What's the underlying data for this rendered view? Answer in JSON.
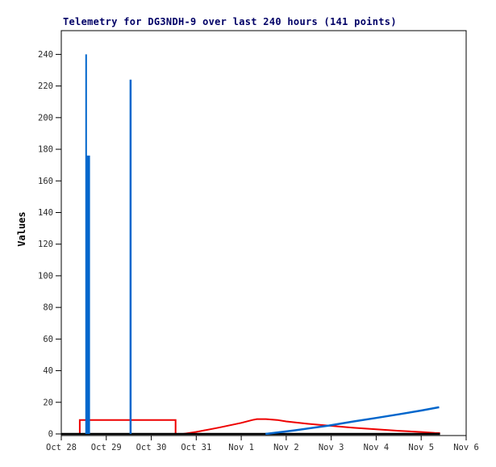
{
  "window": {
    "background": "#FFFFFF"
  },
  "chart_data": {
    "type": "line",
    "title": "Telemetry for DG3NDH-9 over last 240 hours (141 points)",
    "xlabel": "",
    "ylabel": "Values",
    "x_axis": {
      "unit": "days since Oct 28 00:00",
      "range_days": [
        0,
        9
      ],
      "tick_labels": [
        "Oct 28",
        "Oct 29",
        "Oct 30",
        "Oct 31",
        "Nov 1",
        "Nov 2",
        "Nov 3",
        "Nov 4",
        "Nov 5",
        "Nov 6"
      ]
    },
    "y_axis": {
      "range": [
        0,
        255
      ],
      "ticks": [
        0,
        20,
        40,
        60,
        80,
        100,
        120,
        140,
        160,
        180,
        200,
        220,
        240
      ]
    },
    "grid": false,
    "legend": "none",
    "colors": {
      "title_text": "#000066",
      "axis_text": "#2b2b2b",
      "frame": "#000000",
      "red_series": "#EE0000",
      "blue_series": "#0066CC",
      "baseline_series": "#000000"
    },
    "series": [
      {
        "name": "red-step-and-hump",
        "type": "polyline",
        "color_key": "red_series",
        "width": 2,
        "points": [
          [
            0.41,
            0
          ],
          [
            0.41,
            8.8
          ],
          [
            2.54,
            8.8
          ],
          [
            2.54,
            0
          ],
          [
            2.71,
            0
          ],
          [
            3.0,
            1.3
          ],
          [
            3.5,
            4.0
          ],
          [
            4.0,
            7.0
          ],
          [
            4.25,
            8.8
          ],
          [
            4.35,
            9.4
          ],
          [
            4.55,
            9.4
          ],
          [
            4.8,
            8.8
          ],
          [
            5.0,
            7.9
          ],
          [
            5.45,
            6.5
          ],
          [
            5.95,
            5.2
          ],
          [
            6.5,
            3.9
          ],
          [
            7.0,
            2.9
          ],
          [
            7.5,
            2.0
          ],
          [
            8.0,
            1.2
          ],
          [
            8.3,
            0.6
          ],
          [
            8.42,
            0.5
          ]
        ]
      },
      {
        "name": "zero-baseline",
        "type": "polyline",
        "color_key": "baseline_series",
        "width": 2.5,
        "points": [
          [
            0,
            0
          ],
          [
            8.42,
            0
          ]
        ]
      },
      {
        "name": "blue-spikes",
        "type": "spikes",
        "color_key": "blue_series",
        "spikes": [
          {
            "day": 0.552,
            "value": 240,
            "width": 2
          },
          {
            "day": 0.603,
            "value": 176,
            "width": 4
          },
          {
            "day": 1.54,
            "value": 224,
            "width": 2.5
          }
        ]
      },
      {
        "name": "blue-rising-line",
        "type": "polyline",
        "color_key": "blue_series",
        "width": 2.5,
        "points": [
          [
            4.54,
            0
          ],
          [
            5.2,
            2.3
          ],
          [
            5.95,
            5.3
          ],
          [
            6.5,
            7.9
          ],
          [
            7.0,
            10.1
          ],
          [
            7.5,
            12.4
          ],
          [
            8.0,
            14.8
          ],
          [
            8.4,
            16.9
          ]
        ]
      }
    ]
  }
}
